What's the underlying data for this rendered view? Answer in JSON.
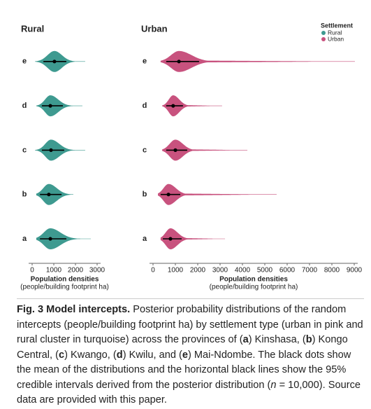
{
  "chart_data": [
    {
      "type": "violin",
      "title": "Rural",
      "categories": [
        "a",
        "b",
        "c",
        "d",
        "e"
      ],
      "xlabel": "Population densities",
      "xsublabel": "(people/building footprint ha)",
      "xlim": [
        0,
        3000
      ],
      "xticks": [
        0,
        1000,
        2000,
        3000
      ],
      "series": [
        {
          "name": "Rural",
          "color": "#3e9a90",
          "mean": [
            840,
            770,
            870,
            840,
            1030
          ],
          "ci_low": [
            360,
            360,
            450,
            450,
            520
          ],
          "ci_high": [
            1580,
            1360,
            1480,
            1420,
            1580
          ],
          "min": [
            190,
            190,
            130,
            190,
            130
          ],
          "max": [
            2710,
            1900,
            2450,
            2320,
            2450
          ]
        }
      ]
    },
    {
      "type": "violin",
      "title": "Urban",
      "categories": [
        "a",
        "b",
        "c",
        "d",
        "e"
      ],
      "xlabel": "Population densities",
      "xsublabel": "(people/building footprint ha)",
      "xlim": [
        0,
        9000
      ],
      "xticks": [
        0,
        1000,
        2000,
        3000,
        4000,
        5000,
        6000,
        7000,
        8000,
        9000
      ],
      "legend_title": "Settlement",
      "series": [
        {
          "name": "Urban",
          "color": "#c8527e",
          "mean": [
            780,
            690,
            1000,
            900,
            1160
          ],
          "ci_low": [
            440,
            340,
            590,
            590,
            590
          ],
          "ci_high": [
            1280,
            1220,
            1530,
            1340,
            2060
          ],
          "min": [
            340,
            220,
            410,
            410,
            340
          ],
          "max": [
            3220,
            5530,
            4220,
            3090,
            9030
          ]
        }
      ]
    }
  ],
  "caption": [
    {
      "text": "Fig. 3 Model intercepts.",
      "style": "bold"
    },
    {
      "text": " Posterior probability distributions of the random intercepts (people/building footprint ha) by settlement type (urban in pink and rural cluster in turquoise) across the provinces of (",
      "style": "normal"
    },
    {
      "text": "a",
      "style": "bold"
    },
    {
      "text": ") Kinshasa, (",
      "style": "normal"
    },
    {
      "text": "b",
      "style": "bold"
    },
    {
      "text": ") Kongo Central, (",
      "style": "normal"
    },
    {
      "text": "c",
      "style": "bold"
    },
    {
      "text": ") Kwango, (",
      "style": "normal"
    },
    {
      "text": "d",
      "style": "bold"
    },
    {
      "text": ") Kwilu, and (",
      "style": "normal"
    },
    {
      "text": "e",
      "style": "bold"
    },
    {
      "text": ") Mai-Ndombe. The black dots show the mean of the distributions and the horizontal black lines show the 95% credible intervals derived from the posterior distribution (",
      "style": "normal"
    },
    {
      "text": "n",
      "style": "italic"
    },
    {
      "text": " = 10,000). Source data are provided with this paper.",
      "style": "normal"
    }
  ]
}
